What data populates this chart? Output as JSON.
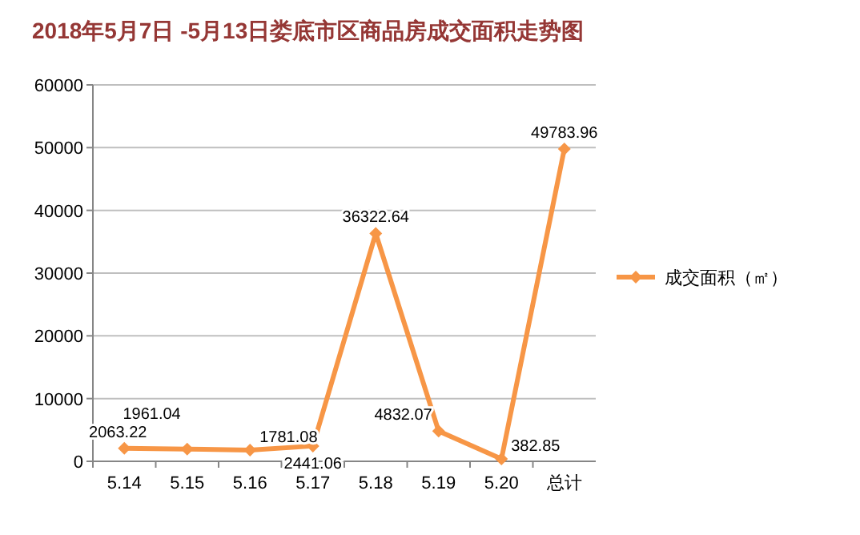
{
  "chart_data": {
    "type": "line",
    "title": "2018年5月7日 -5月13日娄底市区商品房成交面积走势图",
    "categories": [
      "5.14",
      "5.15",
      "5.16",
      "5.17",
      "5.18",
      "5.19",
      "5.20",
      "总计"
    ],
    "series": [
      {
        "name": "成交面积（㎡）",
        "color": "#f79646",
        "values": [
          2063.22,
          1961.04,
          1781.08,
          2441.06,
          36322.64,
          4832.07,
          382.85,
          49783.96
        ]
      }
    ],
    "ylim": [
      0,
      60000
    ],
    "yticks": [
      0,
      10000,
      20000,
      30000,
      40000,
      50000,
      60000
    ],
    "grid": "y",
    "legend": "right",
    "marker": "diamond",
    "line_style": "solid",
    "data_labels": true
  }
}
